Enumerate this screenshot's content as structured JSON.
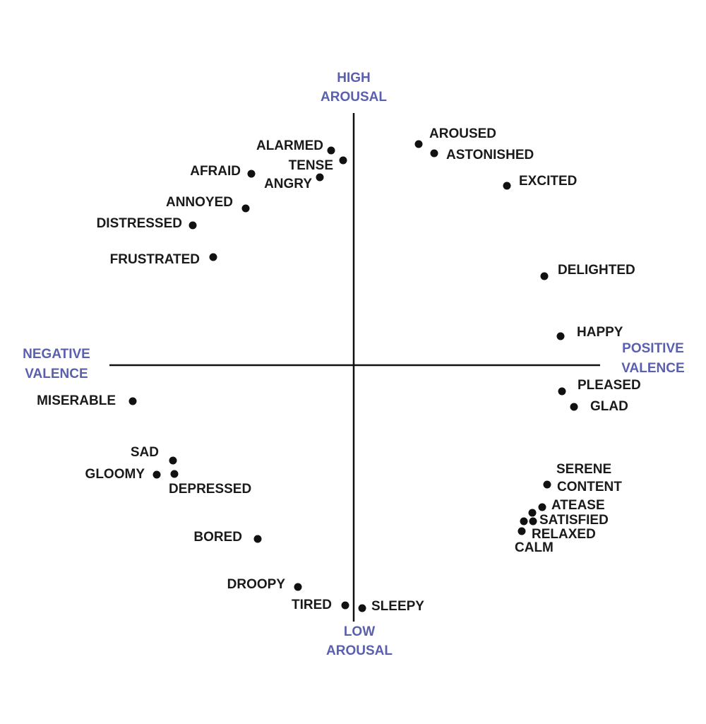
{
  "axes": {
    "high": [
      "HIGH",
      "AROUSAL"
    ],
    "low": [
      "LOW",
      "AROUSAL"
    ],
    "negative": [
      "NEGATIVE",
      "VALENCE"
    ],
    "positive": [
      "POSITIVE",
      "VALENCE"
    ]
  },
  "nodes": [
    {
      "label": "ALARMED"
    },
    {
      "label": "TENSE"
    },
    {
      "label": "AFRAID"
    },
    {
      "label": "ANGRY"
    },
    {
      "label": "ANNOYED"
    },
    {
      "label": "DISTRESSED"
    },
    {
      "label": "FRUSTRATED"
    },
    {
      "label": "AROUSED"
    },
    {
      "label": "ASTONISHED"
    },
    {
      "label": "EXCITED"
    },
    {
      "label": "DELIGHTED"
    },
    {
      "label": "HAPPY"
    },
    {
      "label": "PLEASED"
    },
    {
      "label": "GLAD"
    },
    {
      "label": "SERENE"
    },
    {
      "label": "CONTENT"
    },
    {
      "label": "ATEASE"
    },
    {
      "label": "SATISFIED"
    },
    {
      "label": "RELAXED"
    },
    {
      "label": "CALM"
    },
    {
      "label": "MISERABLE"
    },
    {
      "label": "SAD"
    },
    {
      "label": "GLOOMY"
    },
    {
      "label": "DEPRESSED"
    },
    {
      "label": "BORED"
    },
    {
      "label": "DROOPY"
    },
    {
      "label": "TIRED"
    },
    {
      "label": "SLEEPY"
    }
  ]
}
